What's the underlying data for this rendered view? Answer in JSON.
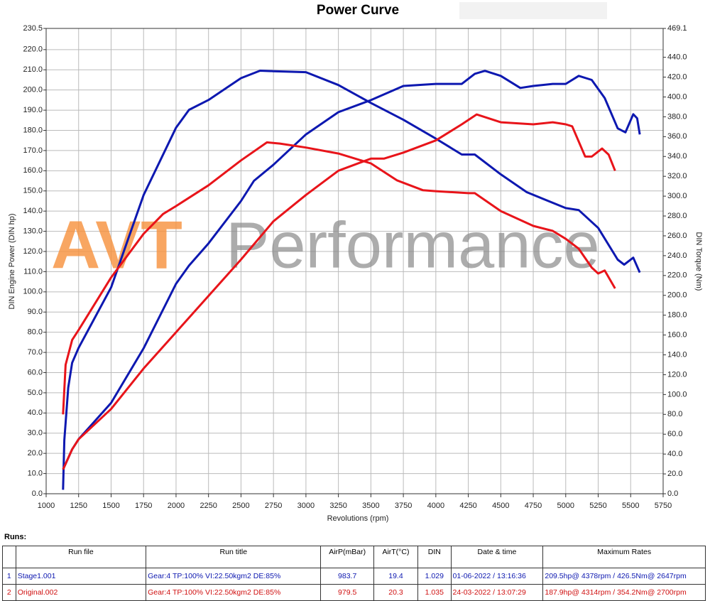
{
  "chart_data": {
    "type": "line",
    "title": "Power Curve",
    "xlabel": "Revolutions (rpm)",
    "ylabel": "DIN Engine Power (DIN hp)",
    "y2label": "DIN Torque (Nm)",
    "watermark": [
      "AVT",
      "Performance"
    ],
    "xlim": [
      1000,
      5750
    ],
    "xticks": [
      1000,
      1250,
      1500,
      1750,
      2000,
      2250,
      2500,
      2750,
      3000,
      3250,
      3500,
      3750,
      4000,
      4250,
      4500,
      4750,
      5000,
      5250,
      5500,
      5750
    ],
    "ylim": [
      0,
      230.5
    ],
    "yticks": [
      {
        "value": 0,
        "label": "0.0"
      },
      {
        "value": 10,
        "label": "10.0"
      },
      {
        "value": 20,
        "label": "20.0"
      },
      {
        "value": 30,
        "label": "30.0"
      },
      {
        "value": 40,
        "label": "40.0"
      },
      {
        "value": 50,
        "label": "50.0"
      },
      {
        "value": 60,
        "label": "60.0"
      },
      {
        "value": 70,
        "label": "70.0"
      },
      {
        "value": 80,
        "label": "80.0"
      },
      {
        "value": 90,
        "label": "90.0"
      },
      {
        "value": 100,
        "label": "100.0"
      },
      {
        "value": 110,
        "label": "110.0"
      },
      {
        "value": 120,
        "label": "120.0"
      },
      {
        "value": 130,
        "label": "130.0"
      },
      {
        "value": 140,
        "label": "140.0"
      },
      {
        "value": 150,
        "label": "150.0"
      },
      {
        "value": 160,
        "label": "160.0"
      },
      {
        "value": 170,
        "label": "170.0"
      },
      {
        "value": 180,
        "label": "180.0"
      },
      {
        "value": 190,
        "label": "190.0"
      },
      {
        "value": 200,
        "label": "200.0"
      },
      {
        "value": 210,
        "label": "210.0"
      },
      {
        "value": 220,
        "label": "220.0"
      },
      230.5
    ],
    "y2lim": [
      0,
      469.1
    ],
    "y2ticks": [
      {
        "value": 0,
        "label": "0.0"
      },
      {
        "value": 20,
        "label": "20.0"
      },
      {
        "value": 40,
        "label": "40.0"
      },
      {
        "value": 60,
        "label": "60.0"
      },
      {
        "value": 80,
        "label": "80.0"
      },
      {
        "value": 100,
        "label": "100.0"
      },
      {
        "value": 120,
        "label": "120.0"
      },
      {
        "value": 140,
        "label": "140.0"
      },
      {
        "value": 160,
        "label": "160.0"
      },
      {
        "value": 180,
        "label": "180.0"
      },
      {
        "value": 200,
        "label": "200.0"
      },
      {
        "value": 220,
        "label": "220.0"
      },
      {
        "value": 240,
        "label": "240.0"
      },
      {
        "value": 260,
        "label": "260.0"
      },
      {
        "value": 280,
        "label": "280.0"
      },
      {
        "value": 300,
        "label": "300.0"
      },
      {
        "value": 320,
        "label": "320.0"
      },
      {
        "value": 340,
        "label": "340.0"
      },
      {
        "value": 360,
        "label": "360.0"
      },
      {
        "value": 380,
        "label": "380.0"
      },
      {
        "value": 400,
        "label": "400.0"
      },
      {
        "value": 420,
        "label": "420.0"
      },
      {
        "value": 440,
        "label": "440.0"
      },
      469.1
    ],
    "grid": true,
    "series": [
      {
        "color": "#0d18b0",
        "x": [
          1130,
          1200,
          1250,
          1500,
          1750,
          2000,
          2100,
          2250,
          2500,
          2600,
          2750,
          3000,
          3250,
          3500,
          3750,
          4000,
          4200,
          4300,
          4378,
          4500,
          4650,
          4750,
          4900,
          5000,
          5100,
          5200,
          5300,
          5400,
          5460,
          5520,
          5550,
          5570
        ],
        "values": [
          12,
          22,
          27,
          45,
          72,
          104,
          113,
          124,
          145,
          155,
          163,
          178,
          189,
          195,
          202,
          203,
          203,
          208,
          209.5,
          207,
          201,
          202,
          203,
          203,
          207,
          205,
          196,
          181,
          179,
          188,
          186,
          178
        ]
      },
      {
        "color": "#0d18b0",
        "axis": "y2",
        "x": [
          1130,
          1140,
          1170,
          1200,
          1250,
          1500,
          1750,
          2000,
          2100,
          2250,
          2500,
          2647,
          2750,
          3000,
          3250,
          3500,
          3750,
          4000,
          4200,
          4300,
          4500,
          4700,
          5000,
          5100,
          5250,
          5400,
          5450,
          5520,
          5570
        ],
        "values": [
          4,
          54,
          107,
          132,
          147,
          208,
          301,
          369,
          387,
          397,
          419,
          426.5,
          426,
          425,
          412,
          394,
          377,
          358,
          342,
          342,
          322,
          304,
          288,
          286,
          268,
          236,
          231,
          238,
          223
        ]
      },
      {
        "color": "#e8141a",
        "x": [
          1130,
          1200,
          1250,
          1500,
          1750,
          2000,
          2250,
          2500,
          2750,
          3000,
          3250,
          3500,
          3600,
          3750,
          4000,
          4200,
          4314,
          4500,
          4750,
          4900,
          5000,
          5050,
          5150,
          5200,
          5280,
          5330,
          5380
        ],
        "values": [
          12,
          22,
          27,
          42,
          62,
          80,
          98,
          116,
          135,
          148,
          160,
          166,
          166,
          169,
          175,
          183,
          187.9,
          184,
          183,
          184,
          183,
          182,
          167,
          167,
          171,
          168,
          160
        ]
      },
      {
        "color": "#e8141a",
        "axis": "y2",
        "x": [
          1130,
          1150,
          1200,
          1250,
          1500,
          1750,
          1900,
          2000,
          2250,
          2500,
          2700,
          2800,
          3000,
          3250,
          3500,
          3700,
          3900,
          4000,
          4250,
          4300,
          4500,
          4750,
          4900,
          5000,
          5100,
          5200,
          5250,
          5300,
          5380
        ],
        "values": [
          80,
          130,
          155,
          165,
          218,
          262,
          282,
          290,
          311,
          336,
          354.2,
          353,
          349,
          343,
          333,
          316,
          306,
          305,
          303,
          303,
          285,
          270,
          265,
          257,
          247,
          228,
          222,
          225,
          207
        ]
      }
    ]
  },
  "table": {
    "caption": "Runs:",
    "header": [
      "Run file",
      "Run title",
      "AirP(mBar)",
      "AirT(°C)",
      "DIN",
      "Date & time",
      "Maximum Rates"
    ],
    "rows": [
      [
        "1",
        "Stage1.001",
        "Gear:4 TP:100% VI:22.50kgm2 DE:85%",
        "983.7",
        "19.4",
        "1.029",
        "01-06-2022 / 13:16:36",
        "209.5hp@ 4378rpm / 426.5Nm@ 2647rpm"
      ],
      [
        "2",
        "Original.002",
        "Gear:4 TP:100% VI:22.50kgm2 DE:85%",
        "979.5",
        "20.3",
        "1.035",
        "24-03-2022 / 13:07:29",
        "187.9hp@ 4314rpm / 354.2Nm@ 2700rpm"
      ]
    ]
  }
}
